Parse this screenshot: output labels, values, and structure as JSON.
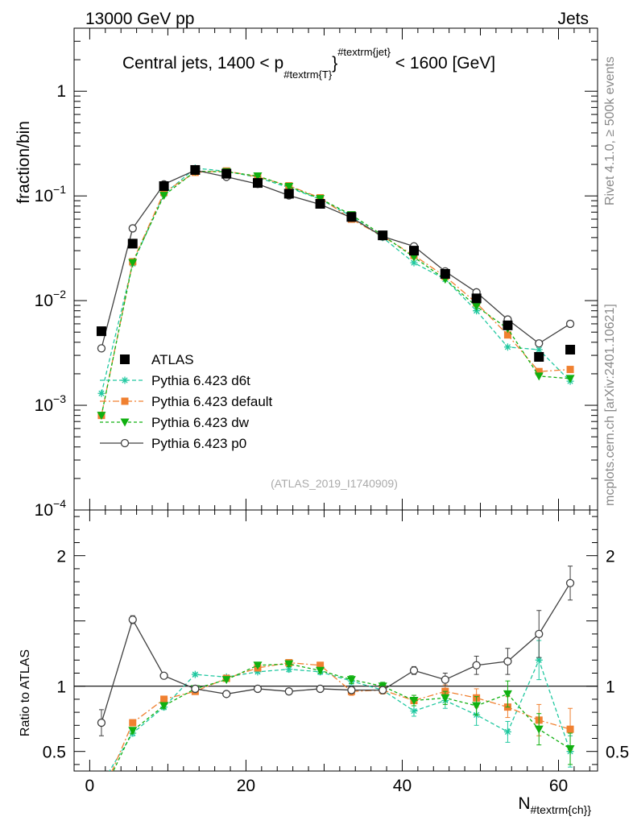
{
  "header": {
    "left": "13000 GeV pp",
    "right": "Jets"
  },
  "side_labels": {
    "rivet": "Rivet 4.1.0, ≥ 500k events",
    "mcplots": "mcplots.cern.ch [arXiv:2401.10621]"
  },
  "colors": {
    "atlas": "#000000",
    "d6t": "#20c8a0",
    "default": "#f08030",
    "dw": "#10b010",
    "p0": "#404040"
  },
  "chart_data": {
    "type": "scatter",
    "title": "Central jets, 1400 < p",
    "title_sub": "#textrm{T",
    "title_sup": "#textrm{jet}",
    "title_close": "}",
    "title_open_sup": "}",
    "title_rest": " < 1600 [GeV]",
    "watermark": "(ATLAS_2019_I1740909)",
    "xlabel_main": "N",
    "xlabel_sub": "#textrm{ch}",
    "ylabel": "fraction/bin",
    "ratio_ylabel": "Ratio to ATLAS",
    "xlim": [
      -2,
      65
    ],
    "ylim": [
      0.0001,
      4
    ],
    "ratio_ylim": [
      0.35,
      2.35
    ],
    "xticks": [
      "0",
      "20",
      "40",
      "60"
    ],
    "yticks": [
      {
        "base": "10",
        "exp": "−4",
        "value": 0.0001
      },
      {
        "base": "10",
        "exp": "−3",
        "value": 0.001
      },
      {
        "base": "10",
        "exp": "−2",
        "value": 0.01
      },
      {
        "base": "10",
        "exp": "−1",
        "value": 0.1
      },
      {
        "base": "1",
        "exp": "",
        "value": 1
      }
    ],
    "ratio_yticks": [
      {
        "label": "0.5",
        "value": 0.5
      },
      {
        "label": "1",
        "value": 1
      },
      {
        "label": "2",
        "value": 2
      }
    ],
    "x": [
      1.5,
      5.5,
      9.5,
      13.5,
      17.5,
      21.5,
      25.5,
      29.5,
      33.5,
      37.5,
      41.5,
      45.5,
      49.5,
      53.5,
      57.5,
      61.5
    ],
    "series": [
      {
        "key": "atlas",
        "name": "ATLAS",
        "marker": "square",
        "dash": "",
        "values": [
          0.0051,
          0.035,
          0.124,
          0.177,
          0.163,
          0.133,
          0.105,
          0.084,
          0.063,
          0.042,
          0.03,
          0.018,
          0.0105,
          0.0058,
          0.0029,
          0.0034
        ],
        "ratio": [
          1,
          1,
          1,
          1,
          1,
          1,
          1,
          1,
          1,
          1,
          1,
          1,
          1,
          1,
          1,
          1
        ],
        "ratio_err": [
          0,
          0,
          0,
          0,
          0,
          0,
          0,
          0,
          0,
          0,
          0,
          0,
          0,
          0,
          0,
          0
        ]
      },
      {
        "key": "d6t",
        "name": "Pythia 6.423 d6t",
        "marker": "star",
        "dash": "5,3",
        "values": [
          0.0013,
          0.0225,
          0.104,
          0.184,
          0.172,
          0.15,
          0.12,
          0.093,
          0.064,
          0.04,
          0.023,
          0.016,
          0.008,
          0.0036,
          0.0034,
          0.0017
        ],
        "ratio": [
          0.25,
          0.64,
          0.84,
          1.09,
          1.07,
          1.11,
          1.13,
          1.11,
          1.04,
          0.97,
          0.81,
          0.89,
          0.78,
          0.65,
          1.2,
          0.5
        ],
        "ratio_err": [
          0,
          0.02,
          0.02,
          0.01,
          0.01,
          0.01,
          0.02,
          0.02,
          0.03,
          0.03,
          0.04,
          0.06,
          0.08,
          0.08,
          0.15,
          0.12
        ]
      },
      {
        "key": "default",
        "name": "Pythia 6.423 default",
        "marker": "square-small",
        "dash": "8,3,2,3",
        "values": [
          0.0008,
          0.0235,
          0.108,
          0.168,
          0.173,
          0.152,
          0.125,
          0.096,
          0.06,
          0.041,
          0.027,
          0.017,
          0.0095,
          0.0047,
          0.0021,
          0.0022
        ],
        "ratio": [
          0.16,
          0.72,
          0.9,
          0.96,
          1.06,
          1.14,
          1.18,
          1.16,
          0.96,
          0.97,
          0.89,
          0.96,
          0.91,
          0.84,
          0.74,
          0.67
        ],
        "ratio_err": [
          0,
          0.02,
          0.02,
          0.01,
          0.01,
          0.01,
          0.02,
          0.02,
          0.03,
          0.03,
          0.04,
          0.05,
          0.07,
          0.08,
          0.12,
          0.16
        ]
      },
      {
        "key": "dw",
        "name": "Pythia 6.423 dw",
        "marker": "triangle-down",
        "dash": "4,3",
        "values": [
          0.0008,
          0.023,
          0.101,
          0.172,
          0.17,
          0.155,
          0.123,
          0.094,
          0.066,
          0.042,
          0.026,
          0.016,
          0.0088,
          0.0054,
          0.0019,
          0.0018
        ],
        "ratio": [
          0.16,
          0.66,
          0.85,
          0.98,
          1.05,
          1.16,
          1.17,
          1.12,
          1.05,
          1.0,
          0.89,
          0.91,
          0.85,
          0.94,
          0.67,
          0.52
        ],
        "ratio_err": [
          0,
          0.02,
          0.02,
          0.01,
          0.01,
          0.01,
          0.02,
          0.02,
          0.03,
          0.03,
          0.04,
          0.05,
          0.07,
          0.1,
          0.12,
          0.12
        ]
      },
      {
        "key": "p0",
        "name": "Pythia 6.423 p0",
        "marker": "circle-open",
        "dash": "",
        "values": [
          0.0035,
          0.049,
          0.129,
          0.176,
          0.152,
          0.13,
          0.101,
          0.083,
          0.062,
          0.041,
          0.033,
          0.019,
          0.012,
          0.0066,
          0.0039,
          0.006
        ],
        "ratio": [
          0.72,
          1.51,
          1.08,
          0.98,
          0.94,
          0.98,
          0.96,
          0.98,
          0.97,
          0.97,
          1.12,
          1.05,
          1.16,
          1.19,
          1.4,
          1.79
        ],
        "ratio_err": [
          0.1,
          0.03,
          0.02,
          0.01,
          0.01,
          0.01,
          0.01,
          0.02,
          0.02,
          0.02,
          0.03,
          0.05,
          0.07,
          0.1,
          0.18,
          0.13
        ]
      }
    ]
  }
}
